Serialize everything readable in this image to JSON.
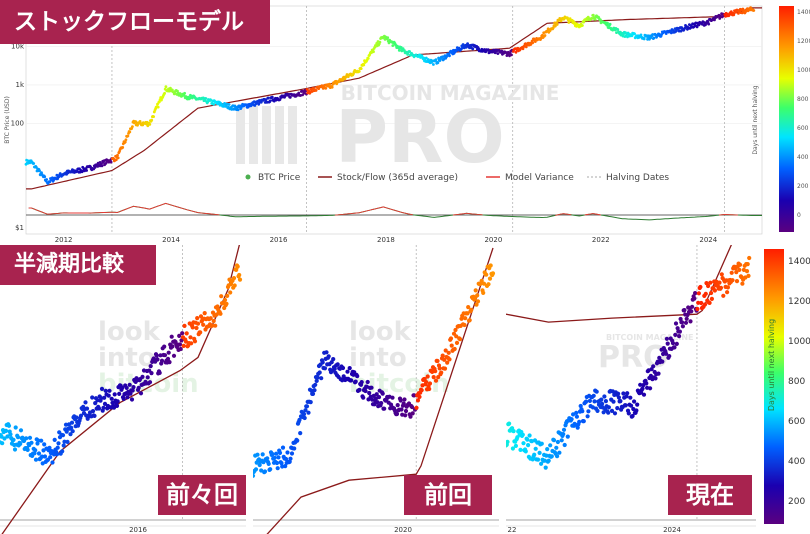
{
  "main": {
    "banner": "ストックフローモデル",
    "watermark_top": "BITCOIN MAGAZINE",
    "watermark_main": "PRO",
    "ylabel": "BTC Price (USD)",
    "cbar_label": "Days until next halving",
    "yticks": [
      "10k",
      "1k",
      "100",
      "$1"
    ],
    "xticks": [
      "2012",
      "2014",
      "2016",
      "2018",
      "2020",
      "2022",
      "2024"
    ],
    "cbar_ticks": [
      "1400",
      "1200",
      "1000",
      "800",
      "600",
      "400",
      "200",
      "0"
    ],
    "legend": [
      "BTC Price",
      "Stock/Flow (365d average)",
      "Model Variance",
      "Halving Dates"
    ]
  },
  "compare": {
    "banner": "半減期比較",
    "panels": [
      {
        "label": "前々回",
        "year": "2016",
        "watermark": [
          "look",
          "into",
          "bitcoin"
        ]
      },
      {
        "label": "前回",
        "year": "2020",
        "watermark": [
          "look",
          "into",
          "bitcoin"
        ]
      },
      {
        "label": "現在",
        "year": "2024",
        "year_left": "22",
        "watermark_main": "PRO",
        "watermark_top": "BITCOIN MAGAZINE"
      }
    ],
    "cbar_label": "Days until next halving",
    "cbar_ticks": [
      "1400",
      "1200",
      "1000",
      "800",
      "600",
      "400",
      "200"
    ]
  },
  "chart_data": [
    {
      "type": "scatter",
      "title": "",
      "xlabel": "",
      "ylabel": "BTC Price (USD)",
      "yscale": "log",
      "xlim": [
        2011.3,
        2025.0
      ],
      "series": [
        {
          "name": "BTC Price",
          "x": [
            2011.4,
            2011.7,
            2012.0,
            2012.5,
            2013.0,
            2013.3,
            2013.6,
            2013.9,
            2014.3,
            2014.8,
            2015.2,
            2015.8,
            2016.5,
            2017.0,
            2017.5,
            2017.95,
            2018.3,
            2018.9,
            2019.5,
            2019.9,
            2020.3,
            2020.9,
            2021.3,
            2021.6,
            2021.85,
            2022.4,
            2022.9,
            2023.5,
            2024.0,
            2024.3,
            2024.8
          ],
          "y": [
            10,
            3,
            5,
            7,
            13,
            100,
            100,
            800,
            500,
            350,
            250,
            400,
            650,
            1000,
            2500,
            18000,
            8000,
            3800,
            11000,
            7500,
            6500,
            18000,
            57000,
            35000,
            63000,
            21000,
            17000,
            29000,
            43000,
            68000,
            90000
          ]
        },
        {
          "name": "Stock/Flow (365d average)",
          "x": [
            2011.4,
            2012.9,
            2013.5,
            2014.5,
            2016.5,
            2017.5,
            2018.5,
            2020.3,
            2021.0,
            2022.5,
            2024.3,
            2024.8
          ],
          "y": [
            2,
            6,
            20,
            250,
            800,
            1500,
            6000,
            9000,
            40000,
            50000,
            60000,
            100000
          ]
        }
      ]
    },
    {
      "type": "scatter",
      "title": "",
      "xlabel": "",
      "ylabel": "",
      "x": [
        2015.0,
        2015.4,
        2015.8,
        2016.1,
        2016.5,
        2016.8,
        2017.0
      ],
      "y": [
        300,
        240,
        380,
        420,
        650,
        800,
        1200
      ]
    },
    {
      "type": "scatter",
      "title": "",
      "xlabel": "",
      "ylabel": "",
      "x": [
        2019.0,
        2019.3,
        2019.6,
        2020.0,
        2020.3,
        2020.6,
        2021.0
      ],
      "y": [
        3600,
        4000,
        11000,
        7500,
        6500,
        11000,
        29000
      ]
    },
    {
      "type": "scatter",
      "title": "",
      "xlabel": "",
      "ylabel": "",
      "x": [
        2022.5,
        2022.9,
        2023.3,
        2023.7,
        2024.0,
        2024.3,
        2024.8
      ],
      "y": [
        21000,
        17000,
        28000,
        27000,
        43000,
        68000,
        90000
      ]
    }
  ]
}
